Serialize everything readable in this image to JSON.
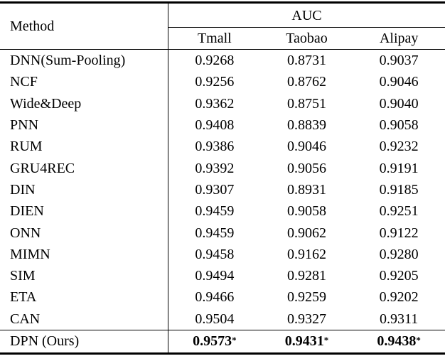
{
  "colors": {
    "text": "#000000",
    "background": "#ffffff",
    "rule": "#000000"
  },
  "table": {
    "header": {
      "method_label": "Method",
      "group_label": "AUC",
      "columns": [
        "Tmall",
        "Taobao",
        "Alipay"
      ]
    },
    "rows": [
      {
        "method": "DNN(Sum-Pooling)",
        "values": [
          "0.9268",
          "0.8731",
          "0.9037"
        ]
      },
      {
        "method": "NCF",
        "values": [
          "0.9256",
          "0.8762",
          "0.9046"
        ]
      },
      {
        "method": "Wide&Deep",
        "values": [
          "0.9362",
          "0.8751",
          "0.9040"
        ]
      },
      {
        "method": "PNN",
        "values": [
          "0.9408",
          "0.8839",
          "0.9058"
        ]
      },
      {
        "method": "RUM",
        "values": [
          "0.9386",
          "0.9046",
          "0.9232"
        ]
      },
      {
        "method": "GRU4REC",
        "values": [
          "0.9392",
          "0.9056",
          "0.9191"
        ]
      },
      {
        "method": "DIN",
        "values": [
          "0.9307",
          "0.8931",
          "0.9185"
        ]
      },
      {
        "method": "DIEN",
        "values": [
          "0.9459",
          "0.9058",
          "0.9251"
        ]
      },
      {
        "method": "ONN",
        "values": [
          "0.9459",
          "0.9062",
          "0.9122"
        ]
      },
      {
        "method": "MIMN",
        "values": [
          "0.9458",
          "0.9162",
          "0.9280"
        ]
      },
      {
        "method": "SIM",
        "values": [
          "0.9494",
          "0.9281",
          "0.9205"
        ]
      },
      {
        "method": "ETA",
        "values": [
          "0.9466",
          "0.9259",
          "0.9202"
        ]
      },
      {
        "method": "CAN",
        "values": [
          "0.9504",
          "0.9327",
          "0.9311"
        ]
      }
    ],
    "final_row": {
      "method": "DPN (Ours)",
      "values": [
        "0.9573",
        "0.9431",
        "0.9438"
      ],
      "marker": "*"
    }
  }
}
